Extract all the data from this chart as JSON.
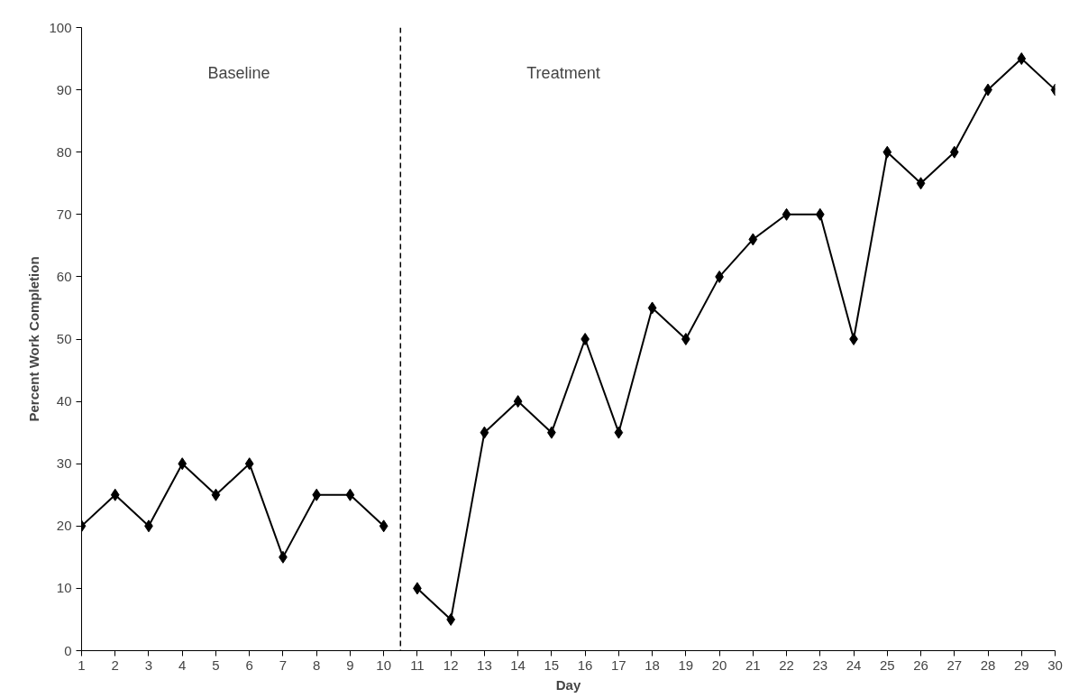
{
  "chart_data": {
    "type": "line",
    "xlabel": "Day",
    "ylabel": "Percent Work Completion",
    "xlim": [
      1,
      30
    ],
    "xticks": [
      1,
      2,
      3,
      4,
      5,
      6,
      7,
      8,
      9,
      10,
      11,
      12,
      13,
      14,
      15,
      16,
      17,
      18,
      19,
      20,
      21,
      22,
      23,
      24,
      25,
      26,
      27,
      28,
      29,
      30
    ],
    "ylim": [
      0,
      100
    ],
    "yticks": [
      0,
      10,
      20,
      30,
      40,
      50,
      60,
      70,
      80,
      90,
      100
    ],
    "grid": false,
    "marker": "diamond",
    "line_style": "solid",
    "series": [
      {
        "color": "#000000",
        "x": [
          1,
          2,
          3,
          4,
          5,
          6,
          7,
          8,
          9,
          10
        ],
        "values": [
          20,
          25,
          20,
          30,
          25,
          30,
          15,
          25,
          25,
          20
        ]
      },
      {
        "color": "#000000",
        "x": [
          11,
          12,
          13,
          14,
          15,
          16,
          17,
          18,
          19,
          20,
          21,
          22,
          23,
          24,
          25,
          26,
          27,
          28,
          29,
          30
        ],
        "values": [
          10,
          5,
          35,
          40,
          35,
          50,
          35,
          55,
          50,
          60,
          66,
          70,
          70,
          50,
          80,
          75,
          80,
          90,
          95,
          90
        ]
      }
    ],
    "ref_lines": [
      {
        "axis": "x",
        "value": 10.5,
        "color": "#000000",
        "line_style": "dashed"
      }
    ],
    "annotations": [
      "Baseline",
      "Treatment"
    ]
  }
}
